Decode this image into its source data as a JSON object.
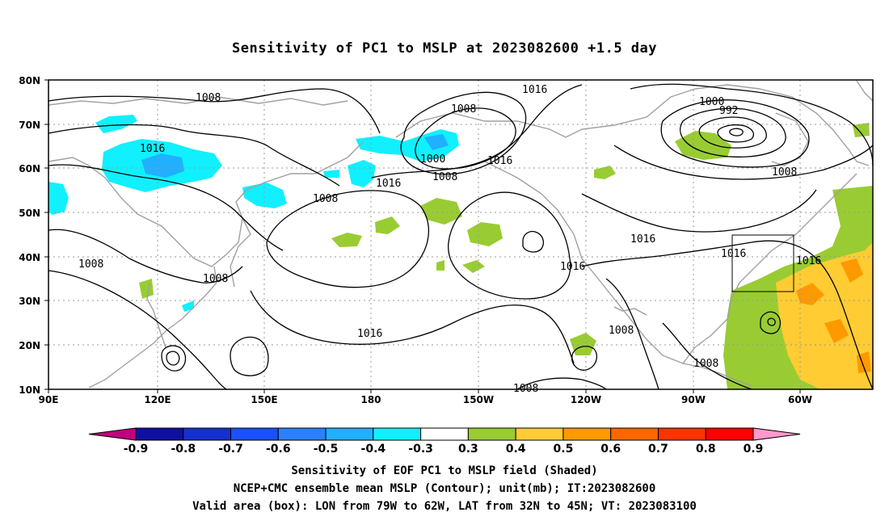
{
  "title": "Sensitivity of PC1 to MSLP at 2023082600 +1.5 day",
  "map": {
    "lat_ticks": [
      "80N",
      "70N",
      "60N",
      "50N",
      "40N",
      "30N",
      "20N",
      "10N"
    ],
    "lon_ticks": [
      "90E",
      "120E",
      "150E",
      "180",
      "150W",
      "120W",
      "90W",
      "60W"
    ],
    "contour_labels": [
      "1008",
      "1008",
      "1016",
      "1008",
      "1016",
      "1008",
      "1000",
      "1016",
      "1008",
      "1016",
      "1000",
      "992",
      "1008",
      "1016",
      "1016",
      "1016",
      "1016",
      "1008",
      "1016",
      "1008",
      "1008",
      "1008"
    ],
    "valid_box": {
      "lon_from": "79W",
      "lon_to": "62W",
      "lat_from": "32N",
      "lat_to": "45N"
    }
  },
  "colorbar": {
    "labels": [
      "-0.9",
      "-0.8",
      "-0.7",
      "-0.6",
      "-0.5",
      "-0.4",
      "-0.3",
      "0.3",
      "0.4",
      "0.5",
      "0.6",
      "0.7",
      "0.8",
      "0.9"
    ],
    "colors": [
      "#c0007f",
      "#1010a0",
      "#1530d0",
      "#1a50ff",
      "#2a80ff",
      "#20b0ff",
      "#10f0ff",
      "#ffffff",
      "#99cc33",
      "#ffcc33",
      "#ff9900",
      "#ff6600",
      "#ff3300",
      "#ff0000",
      "#ff99cc"
    ]
  },
  "captions": {
    "line1": "Sensitivity of EOF PC1 to MSLP field (Shaded)",
    "line2": "NCEP+CMC ensemble mean MSLP (Contour); unit(mb); IT:2023082600",
    "line3": "Valid area (box): LON from 79W to 62W, LAT from 32N to 45N; VT: 2023083100"
  }
}
